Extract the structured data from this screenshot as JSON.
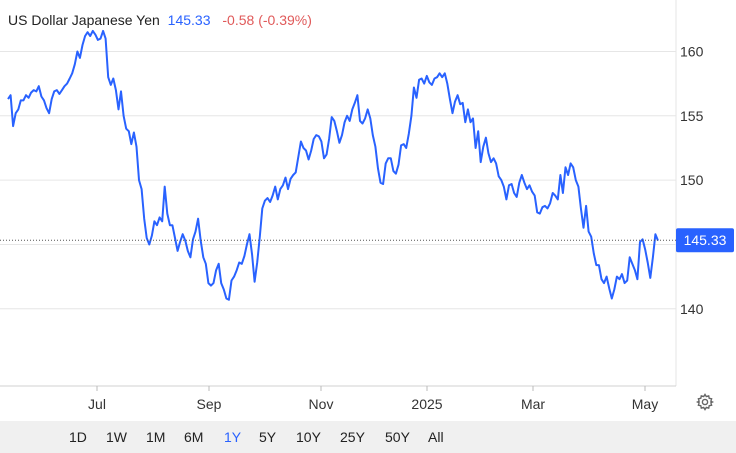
{
  "header": {
    "instrument": "US Dollar Japanese Yen",
    "price": "145.33",
    "change": "-0.58 (-0.39%)"
  },
  "colors": {
    "line": "#2962ff",
    "negative": "#e05a5a",
    "grid": "#e6e6e6",
    "badge": "#2962ff"
  },
  "last_price_label": "145.33",
  "ranges": [
    "1D",
    "1W",
    "1M",
    "6M",
    "1Y",
    "5Y",
    "10Y",
    "25Y",
    "50Y",
    "All"
  ],
  "active_range": "1Y",
  "settings_icon": "gear-icon",
  "chart_data": {
    "type": "line",
    "title": "US Dollar Japanese Yen",
    "x_tick_labels": [
      "Jul",
      "Sep",
      "Nov",
      "2025",
      "Mar",
      "May"
    ],
    "y_ticks": [
      140,
      145,
      150,
      155,
      160
    ],
    "ylim": [
      134,
      164
    ],
    "grid": true,
    "last_value": 145.33,
    "series": [
      {
        "values": [
          156.3,
          156.6,
          154.2,
          155.2,
          155.5,
          156.2,
          156.2,
          156.6,
          156.4,
          156.8,
          157.0,
          156.9,
          157.3,
          156.5,
          156.2,
          155.6,
          155.2,
          156.3,
          156.9,
          157.0,
          156.7,
          157.0,
          157.3,
          157.5,
          157.9,
          158.3,
          159.0,
          160.0,
          159.5,
          160.5,
          161.2,
          161.5,
          161.2,
          161.6,
          161.3,
          160.9,
          161.0,
          161.6,
          161.0,
          158.0,
          157.4,
          157.9,
          157.0,
          155.5,
          156.9,
          155.0,
          154.0,
          153.8,
          152.8,
          153.7,
          152.6,
          150.0,
          149.3,
          147.0,
          145.5,
          145.0,
          145.7,
          146.8,
          146.5,
          147.1,
          146.8,
          149.5,
          147.4,
          146.5,
          146.5,
          145.5,
          144.5,
          145.2,
          145.8,
          145.3,
          144.5,
          144.0,
          145.4,
          146.0,
          147.0,
          145.3,
          144.0,
          143.5,
          142.0,
          141.8,
          142.0,
          143.0,
          143.5,
          142.0,
          141.5,
          140.8,
          140.7,
          142.2,
          142.5,
          143.0,
          143.6,
          143.5,
          144.1,
          145.0,
          145.8,
          144.2,
          142.1,
          143.6,
          145.6,
          147.8,
          148.4,
          148.6,
          148.3,
          148.8,
          149.5,
          148.5,
          149.3,
          149.6,
          150.2,
          149.3,
          150.1,
          150.4,
          150.6,
          151.8,
          153.0,
          152.5,
          152.3,
          151.6,
          152.3,
          153.2,
          153.5,
          153.4,
          153.0,
          151.7,
          152.0,
          153.2,
          154.9,
          154.6,
          153.8,
          152.9,
          153.5,
          154.5,
          155.0,
          154.6,
          155.5,
          156.0,
          156.6,
          154.6,
          154.4,
          154.8,
          155.5,
          154.8,
          153.5,
          152.6,
          150.9,
          149.8,
          149.7,
          151.3,
          151.7,
          151.7,
          150.7,
          150.5,
          151.2,
          152.7,
          152.8,
          152.5,
          153.6,
          155.0,
          157.2,
          156.4,
          157.8,
          157.9,
          157.5,
          158.1,
          157.6,
          157.4,
          157.9,
          158.0,
          158.3,
          158.0,
          158.3,
          157.5,
          156.3,
          155.2,
          156.1,
          156.6,
          155.9,
          156.0,
          154.5,
          155.5,
          154.5,
          154.8,
          152.5,
          153.8,
          151.4,
          152.6,
          153.3,
          152.1,
          151.4,
          151.7,
          151.3,
          150.3,
          150.0,
          149.5,
          148.5,
          149.6,
          149.7,
          149.0,
          148.7,
          149.8,
          150.4,
          149.8,
          149.3,
          149.6,
          149.1,
          148.8,
          147.5,
          147.4,
          147.9,
          148.0,
          147.8,
          148.2,
          149.0,
          148.8,
          148.5,
          150.4,
          149.0,
          151.0,
          150.4,
          151.3,
          151.0,
          150.0,
          149.5,
          147.8,
          146.3,
          148.0,
          146.0,
          145.6,
          144.3,
          143.4,
          143.4,
          142.3,
          142.0,
          142.5,
          141.6,
          140.8,
          141.5,
          142.5,
          142.3,
          142.7,
          142.0,
          142.2,
          144.0,
          143.5,
          143.0,
          142.3,
          145.2,
          145.4,
          144.6,
          143.6,
          142.4,
          144.0,
          145.8,
          145.3
        ]
      }
    ]
  }
}
